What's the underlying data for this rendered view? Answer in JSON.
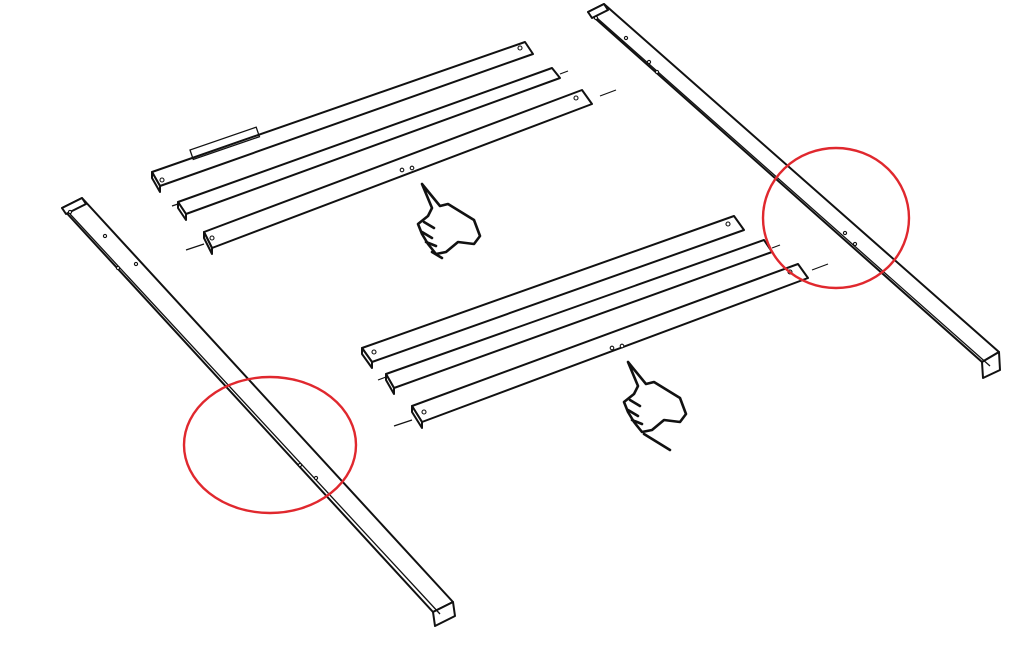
{
  "figure": {
    "background": "#ffffff",
    "line_color": "#111111",
    "highlight_color": "#e0282e",
    "icons": [
      "pointing-hand-icon"
    ],
    "parts": {
      "legs": 2,
      "rail_groups": 2,
      "rails_per_group": 3,
      "highlighted_joints": 2
    }
  }
}
